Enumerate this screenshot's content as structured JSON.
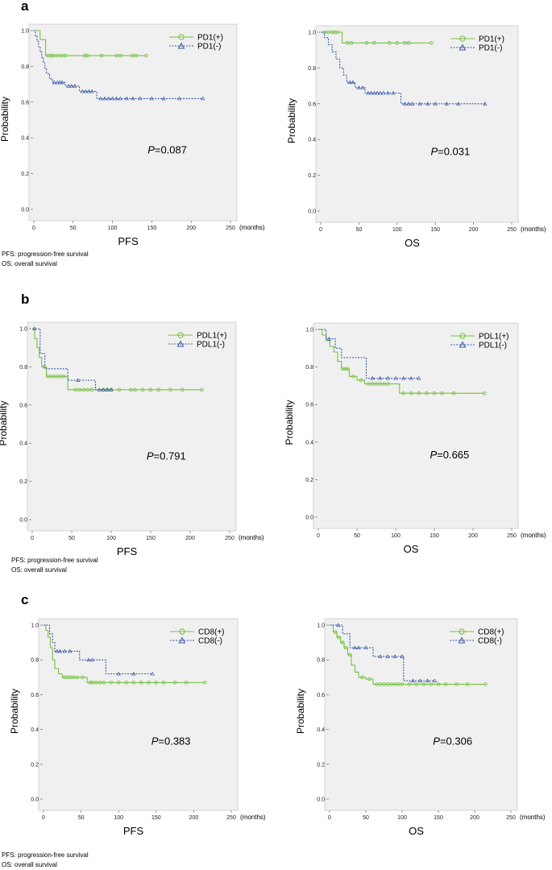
{
  "figure": {
    "notes": [
      "PFS: progression-free survival",
      "OS: overall survival"
    ],
    "months_label": "(months)"
  },
  "colors": {
    "positive": "#77c043",
    "negative": "#3a59a8",
    "plot_bg": "#f0f0f0"
  },
  "chart_data": [
    {
      "id": "a-pfs",
      "panel": "a",
      "type": "line",
      "xlabel": "PFS",
      "ylabel": "Probability",
      "pvalue_prefix": "P",
      "pvalue": "=0.087",
      "xlim": [
        0,
        250
      ],
      "ylim": [
        0,
        1
      ],
      "xticks": [
        0,
        50,
        100,
        150,
        200,
        250
      ],
      "yticks": [
        0.0,
        0.2,
        0.4,
        0.6,
        0.8,
        1.0
      ],
      "series": [
        {
          "name": "PD1(+)",
          "style": "solid",
          "marker": "circle",
          "x": [
            0,
            8,
            8,
            15,
            15,
            143
          ],
          "y": [
            1.0,
            1.0,
            0.95,
            0.95,
            0.86,
            0.86
          ],
          "censor_x": [
            18,
            22,
            25,
            30,
            35,
            40,
            65,
            68,
            86,
            105,
            110,
            125,
            130,
            143
          ]
        },
        {
          "name": "PD1(-)",
          "style": "dashed",
          "marker": "triangle",
          "x": [
            0,
            2,
            2,
            4,
            4,
            6,
            6,
            8,
            8,
            10,
            10,
            12,
            12,
            14,
            14,
            16,
            16,
            20,
            20,
            24,
            24,
            40,
            40,
            58,
            58,
            80,
            80,
            215
          ],
          "y": [
            1.0,
            1.0,
            0.97,
            0.97,
            0.94,
            0.94,
            0.91,
            0.91,
            0.88,
            0.88,
            0.85,
            0.85,
            0.82,
            0.82,
            0.79,
            0.79,
            0.76,
            0.76,
            0.73,
            0.73,
            0.71,
            0.71,
            0.69,
            0.69,
            0.66,
            0.66,
            0.62,
            0.62
          ],
          "censor_x": [
            26,
            30,
            33,
            36,
            44,
            48,
            52,
            62,
            66,
            70,
            74,
            85,
            90,
            95,
            100,
            105,
            110,
            118,
            126,
            135,
            150,
            165,
            185,
            215
          ]
        }
      ]
    },
    {
      "id": "a-os",
      "panel": "",
      "type": "line",
      "xlabel": "OS",
      "ylabel": "Probability",
      "pvalue_prefix": "P",
      "pvalue": "=0.031",
      "xlim": [
        0,
        250
      ],
      "ylim": [
        0,
        1
      ],
      "xticks": [
        0,
        50,
        100,
        150,
        200,
        250
      ],
      "yticks": [
        0.0,
        0.2,
        0.4,
        0.6,
        0.8,
        1.0
      ],
      "series": [
        {
          "name": "PD1(+)",
          "style": "solid",
          "marker": "circle",
          "x": [
            0,
            28,
            28,
            145
          ],
          "y": [
            1.0,
            1.0,
            0.94,
            0.94
          ],
          "censor_x": [
            5,
            10,
            15,
            18,
            22,
            35,
            40,
            60,
            70,
            90,
            100,
            110,
            115,
            145
          ]
        },
        {
          "name": "PD1(-)",
          "style": "dashed",
          "marker": "triangle",
          "x": [
            0,
            5,
            5,
            10,
            10,
            15,
            15,
            20,
            20,
            25,
            25,
            30,
            30,
            34,
            34,
            45,
            45,
            58,
            58,
            105,
            105,
            215
          ],
          "y": [
            1.0,
            1.0,
            0.97,
            0.97,
            0.93,
            0.93,
            0.89,
            0.89,
            0.85,
            0.85,
            0.8,
            0.8,
            0.76,
            0.76,
            0.72,
            0.72,
            0.69,
            0.69,
            0.66,
            0.66,
            0.6,
            0.6
          ],
          "censor_x": [
            38,
            42,
            50,
            55,
            62,
            66,
            70,
            74,
            78,
            82,
            88,
            95,
            110,
            115,
            120,
            130,
            140,
            150,
            165,
            180,
            215
          ]
        }
      ]
    },
    {
      "id": "b-pfs",
      "panel": "b",
      "type": "line",
      "xlabel": "PFS",
      "ylabel": "Probability",
      "pvalue_prefix": "P",
      "pvalue": "=0.791",
      "xlim": [
        0,
        250
      ],
      "ylim": [
        0,
        1
      ],
      "xticks": [
        0,
        50,
        100,
        150,
        200,
        250
      ],
      "yticks": [
        0.0,
        0.2,
        0.4,
        0.6,
        0.8,
        1.0
      ],
      "series": [
        {
          "name": "PDL1(+)",
          "style": "solid",
          "marker": "circle",
          "x": [
            0,
            3,
            3,
            6,
            6,
            9,
            9,
            12,
            12,
            18,
            18,
            45,
            45,
            215
          ],
          "y": [
            1.0,
            1.0,
            0.95,
            0.95,
            0.9,
            0.9,
            0.85,
            0.85,
            0.8,
            0.8,
            0.75,
            0.75,
            0.68,
            0.68
          ],
          "censor_x": [
            15,
            20,
            24,
            28,
            32,
            36,
            40,
            55,
            60,
            65,
            70,
            75,
            90,
            95,
            100,
            110,
            125,
            130,
            140,
            150,
            160,
            175,
            190,
            215
          ]
        },
        {
          "name": "PDL1(-)",
          "style": "dashed",
          "marker": "triangle",
          "x": [
            0,
            10,
            10,
            16,
            16,
            45,
            45,
            80,
            80,
            100
          ],
          "y": [
            1.0,
            1.0,
            0.87,
            0.87,
            0.79,
            0.79,
            0.73,
            0.73,
            0.68,
            0.68
          ],
          "censor_x": [
            3,
            58,
            85,
            90,
            95,
            100
          ]
        }
      ]
    },
    {
      "id": "b-os",
      "panel": "",
      "type": "line",
      "xlabel": "OS",
      "ylabel": "Probability",
      "pvalue_prefix": "P",
      "pvalue": "=0.665",
      "xlim": [
        0,
        250
      ],
      "ylim": [
        0,
        1
      ],
      "xticks": [
        0,
        50,
        100,
        150,
        200,
        250
      ],
      "yticks": [
        0.0,
        0.2,
        0.4,
        0.6,
        0.8,
        1.0
      ],
      "series": [
        {
          "name": "PDL1(+)",
          "style": "solid",
          "marker": "circle",
          "x": [
            0,
            5,
            5,
            10,
            10,
            15,
            15,
            20,
            20,
            25,
            25,
            30,
            30,
            40,
            40,
            50,
            50,
            60,
            60,
            105,
            105,
            215
          ],
          "y": [
            1.0,
            1.0,
            0.97,
            0.97,
            0.94,
            0.94,
            0.91,
            0.91,
            0.88,
            0.88,
            0.83,
            0.83,
            0.79,
            0.79,
            0.75,
            0.75,
            0.73,
            0.73,
            0.71,
            0.71,
            0.66,
            0.66
          ],
          "censor_x": [
            32,
            35,
            38,
            45,
            55,
            65,
            70,
            75,
            80,
            85,
            90,
            110,
            120,
            130,
            140,
            150,
            160,
            175,
            215
          ]
        },
        {
          "name": "PDL1(-)",
          "style": "dashed",
          "marker": "triangle",
          "x": [
            0,
            10,
            10,
            22,
            22,
            30,
            30,
            62,
            62,
            130
          ],
          "y": [
            1.0,
            1.0,
            0.95,
            0.95,
            0.9,
            0.9,
            0.85,
            0.85,
            0.74,
            0.74
          ],
          "censor_x": [
            14,
            70,
            80,
            90,
            100,
            110,
            120,
            130
          ]
        }
      ]
    },
    {
      "id": "c-pfs",
      "panel": "c",
      "type": "line",
      "xlabel": "PFS",
      "ylabel": "Probability",
      "pvalue_prefix": "P",
      "pvalue": "=0.383",
      "xlim": [
        0,
        250
      ],
      "ylim": [
        0,
        1
      ],
      "xticks": [
        0,
        50,
        100,
        150,
        200,
        250
      ],
      "yticks": [
        0.0,
        0.2,
        0.4,
        0.6,
        0.8,
        1.0
      ],
      "series": [
        {
          "name": "CD8(+)",
          "style": "solid",
          "marker": "circle",
          "x": [
            0,
            3,
            3,
            6,
            6,
            9,
            9,
            12,
            12,
            15,
            15,
            20,
            20,
            25,
            25,
            58,
            58,
            215
          ],
          "y": [
            1.0,
            1.0,
            0.97,
            0.97,
            0.93,
            0.93,
            0.87,
            0.87,
            0.8,
            0.8,
            0.75,
            0.75,
            0.72,
            0.72,
            0.7,
            0.7,
            0.67,
            0.67
          ],
          "censor_x": [
            28,
            32,
            36,
            40,
            45,
            52,
            62,
            65,
            70,
            75,
            80,
            90,
            100,
            110,
            120,
            130,
            140,
            150,
            160,
            175,
            190,
            215
          ]
        },
        {
          "name": "CD8(-)",
          "style": "dashed",
          "marker": "triangle",
          "x": [
            0,
            8,
            8,
            12,
            12,
            15,
            15,
            48,
            48,
            83,
            83,
            145
          ],
          "y": [
            1.0,
            1.0,
            0.95,
            0.95,
            0.9,
            0.9,
            0.85,
            0.85,
            0.8,
            0.8,
            0.72,
            0.72
          ],
          "censor_x": [
            18,
            22,
            28,
            35,
            60,
            65,
            100,
            120,
            145
          ]
        }
      ]
    },
    {
      "id": "c-os",
      "panel": "",
      "type": "line",
      "xlabel": "OS",
      "ylabel": "Probability",
      "pvalue_prefix": "P",
      "pvalue": "=0.306",
      "xlim": [
        0,
        250
      ],
      "ylim": [
        0,
        1
      ],
      "xticks": [
        0,
        50,
        100,
        150,
        200,
        250
      ],
      "yticks": [
        0.0,
        0.2,
        0.4,
        0.6,
        0.8,
        1.0
      ],
      "series": [
        {
          "name": "CD8(+)",
          "style": "solid",
          "marker": "circle",
          "x": [
            0,
            5,
            5,
            10,
            10,
            15,
            15,
            20,
            20,
            25,
            25,
            30,
            30,
            35,
            35,
            40,
            40,
            50,
            50,
            60,
            60,
            215
          ],
          "y": [
            1.0,
            1.0,
            0.96,
            0.96,
            0.93,
            0.93,
            0.9,
            0.9,
            0.87,
            0.87,
            0.83,
            0.83,
            0.77,
            0.77,
            0.73,
            0.73,
            0.7,
            0.7,
            0.69,
            0.69,
            0.66,
            0.66
          ],
          "censor_x": [
            8,
            13,
            18,
            22,
            28,
            45,
            55,
            65,
            70,
            75,
            80,
            85,
            90,
            95,
            100,
            110,
            120,
            130,
            140,
            150,
            160,
            175,
            190,
            215
          ]
        },
        {
          "name": "CD8(-)",
          "style": "dashed",
          "marker": "triangle",
          "x": [
            0,
            18,
            18,
            28,
            28,
            60,
            60,
            102,
            102,
            145
          ],
          "y": [
            1.0,
            1.0,
            0.95,
            0.95,
            0.87,
            0.87,
            0.82,
            0.82,
            0.68,
            0.68
          ],
          "censor_x": [
            12,
            35,
            40,
            50,
            70,
            80,
            90,
            100,
            115,
            125,
            135,
            145
          ]
        }
      ]
    }
  ]
}
